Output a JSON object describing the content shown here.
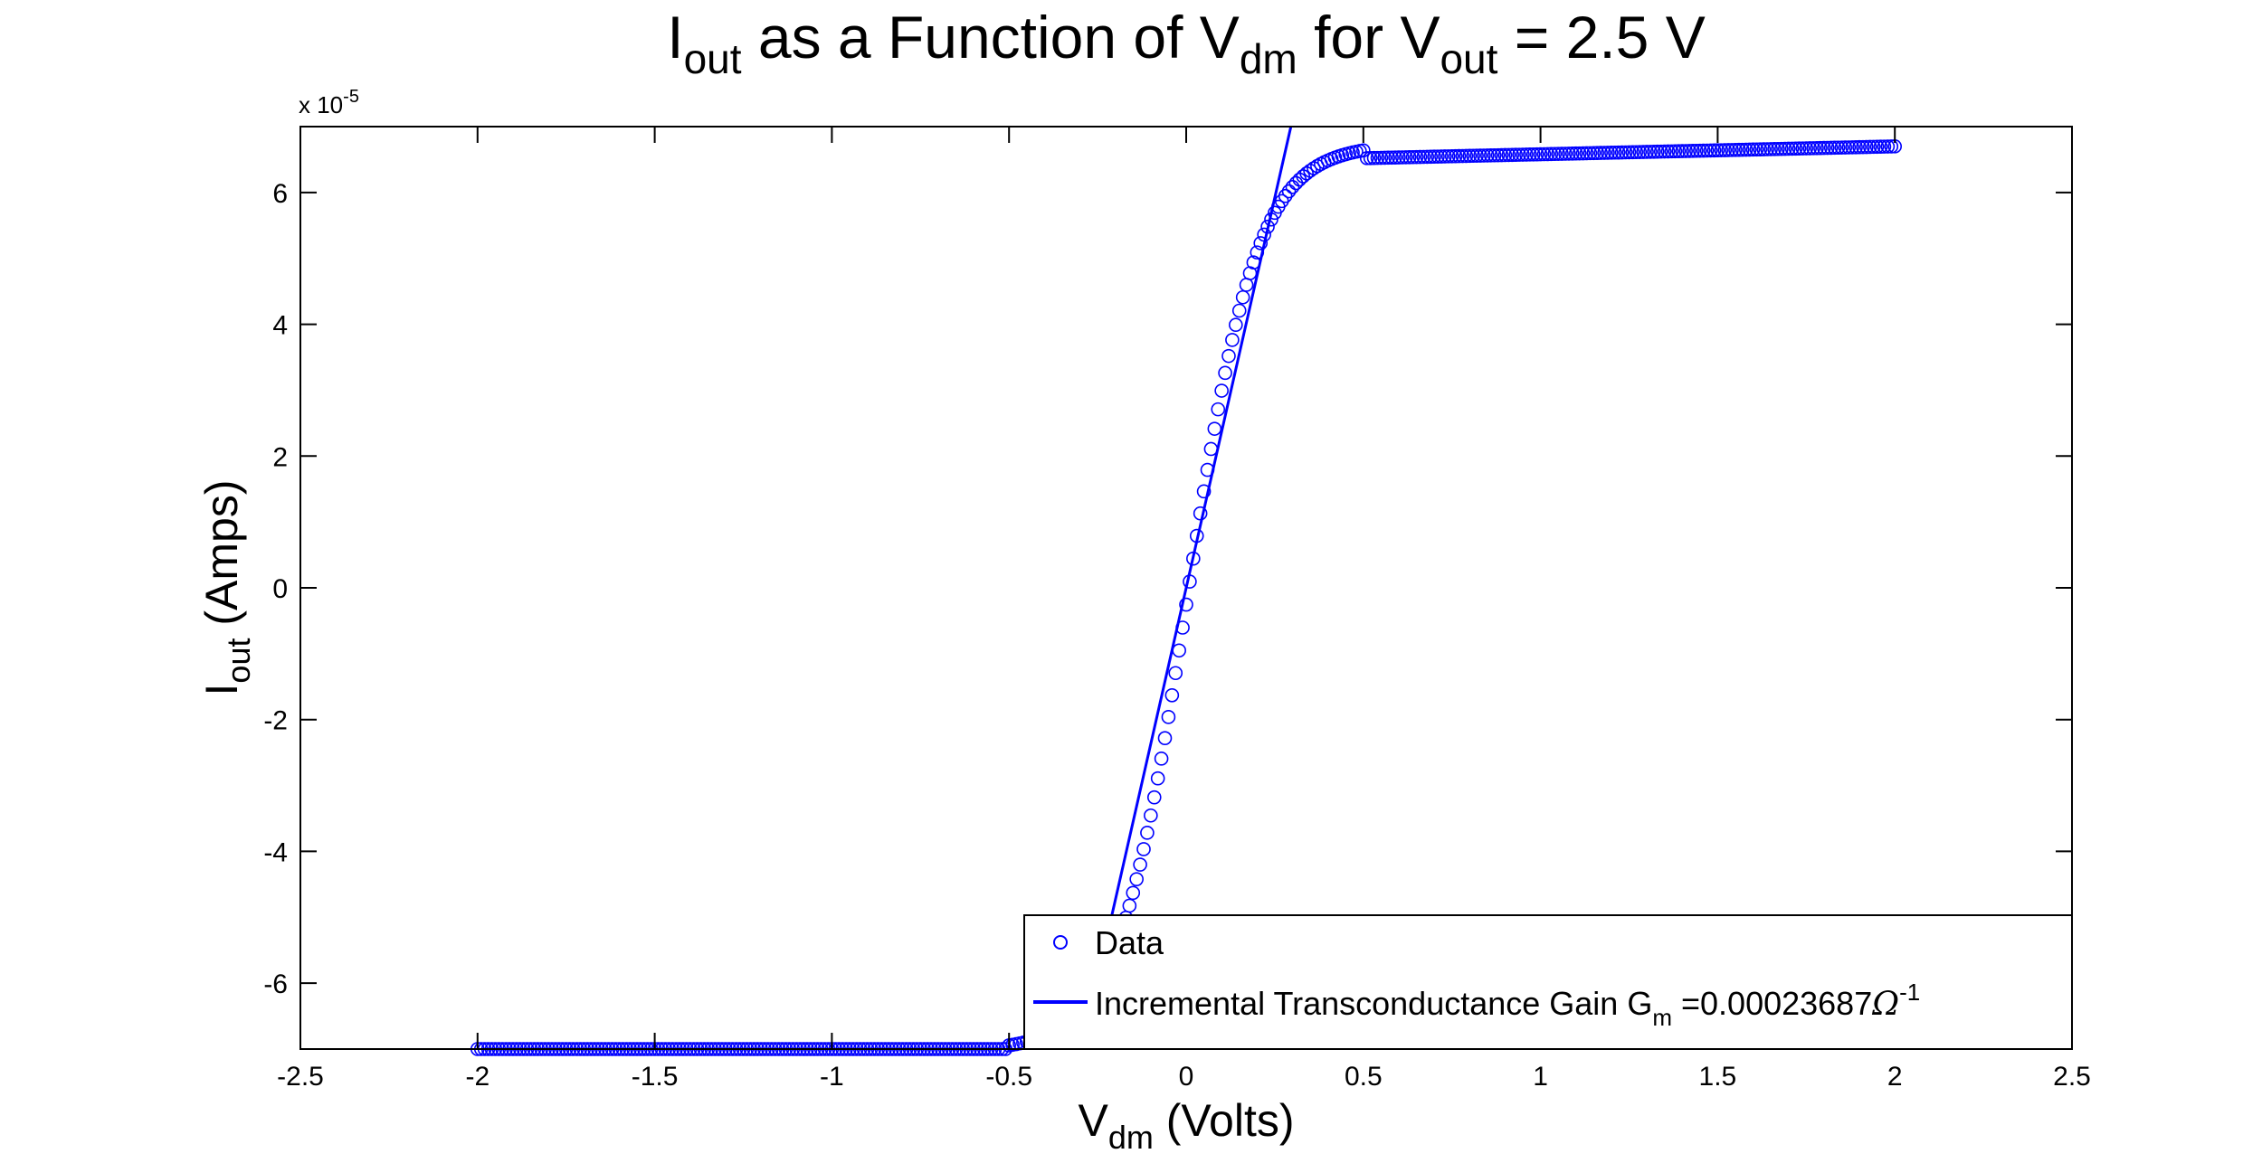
{
  "chart_data": {
    "type": "scatter",
    "title": {
      "parts": [
        "I",
        "out",
        " as a Function of V",
        "dm",
        " for V",
        "out",
        " = 2.5 V"
      ]
    },
    "xlabel": {
      "main": "V",
      "sub": "dm",
      "rest": " (Volts)"
    },
    "ylabel": {
      "main": "I",
      "sub": "out",
      "rest": " (Amps)"
    },
    "y_exponent_label": {
      "base": "x 10",
      "exp": "-5"
    },
    "xlim": [
      -2.5,
      2.5
    ],
    "ylim": [
      -7e-05,
      7e-05
    ],
    "xticks": [
      -2.5,
      -2,
      -1.5,
      -1,
      -0.5,
      0,
      0.5,
      1,
      1.5,
      2,
      2.5
    ],
    "xtick_labels": [
      "-2.5",
      "-2",
      "-1.5",
      "-1",
      "-0.5",
      "0",
      "0.5",
      "1",
      "1.5",
      "2",
      "2.5"
    ],
    "yticks": [
      -6e-05,
      -4e-05,
      -2e-05,
      0,
      2e-05,
      4e-05,
      6e-05
    ],
    "ytick_labels": [
      "-6",
      "-4",
      "-2",
      "0",
      "2",
      "4",
      "6"
    ],
    "grid": false,
    "legend_position": "bottom-right",
    "series": [
      {
        "name": "Data",
        "kind": "scatter",
        "marker": "circle-open",
        "color": "#0000ff",
        "x_range": [
          -2,
          2
        ],
        "y_low": -7e-05,
        "y_high": 6.7e-05,
        "sample_points": [
          [
            -2.0,
            -7e-05
          ],
          [
            -1.0,
            -7e-05
          ],
          [
            -0.5,
            -6.98e-05
          ],
          [
            -0.4,
            -6.9e-05
          ],
          [
            -0.3,
            -6.6e-05
          ],
          [
            -0.2,
            -4.7e-05
          ],
          [
            -0.1,
            -2.4e-05
          ],
          [
            0.0,
            0.0
          ],
          [
            0.1,
            2.4e-05
          ],
          [
            0.2,
            4.7e-05
          ],
          [
            0.3,
            6.2e-05
          ],
          [
            0.4,
            6.48e-05
          ],
          [
            0.5,
            6.52e-05
          ],
          [
            1.0,
            6.58e-05
          ],
          [
            1.5,
            6.65e-05
          ],
          [
            2.0,
            6.7e-05
          ]
        ]
      },
      {
        "name": "Incremental Transconductance Gain G_m =0.00023687Ω^-1",
        "kind": "line",
        "color": "#0000ff",
        "slope": 0.00023687,
        "intercept": 0.0
      }
    ],
    "legend": {
      "data_label": "Data",
      "fit_label_main": "Incremental Transconductance Gain G",
      "fit_label_sub": "m",
      "fit_label_value": " =0.00023687",
      "fit_label_unit": "Ω",
      "fit_label_exp": "-1"
    }
  }
}
